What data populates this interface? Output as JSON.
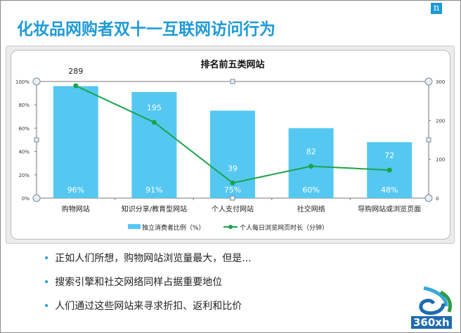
{
  "slide": {
    "title": "化妆品网购者双十一互联网访问行为",
    "brand_mark": "n",
    "bullets": [
      "正如人们所想，购物网站浏览量最大，但是...",
      "搜索引擎和社交网络同样占据重要地位",
      "人们通过这些网站来寻求折扣、返利和比价"
    ],
    "logo_text": "360xh"
  },
  "chart_data": {
    "type": "bar+line",
    "title": "排名前五类网站",
    "categories": [
      "购物网站",
      "知识分享/教育型网站",
      "个人支付网站",
      "社交网络",
      "导购网站或浏览页面"
    ],
    "series": [
      {
        "name": "独立消费者比例（%）",
        "type": "bar",
        "axis": "left",
        "values": [
          96,
          91,
          75,
          60,
          48
        ],
        "labels": [
          "96%",
          "91%",
          "75%",
          "60%",
          "48%"
        ],
        "color": "#55c8f2"
      },
      {
        "name": "个人每日浏览网页时长（分钟）",
        "type": "line",
        "axis": "right",
        "values": [
          289,
          195,
          39,
          82,
          72
        ],
        "labels": [
          "289",
          "195",
          "39",
          "82",
          "72"
        ],
        "color": "#1aa34a"
      }
    ],
    "left_axis": {
      "ylim": [
        0,
        100
      ],
      "ticks": [
        "0%",
        "20%",
        "40%",
        "60%",
        "80%",
        "100%"
      ]
    },
    "right_axis": {
      "ylim": [
        0,
        300
      ],
      "ticks": [
        "0",
        "100",
        "200",
        "300"
      ]
    },
    "grid": false,
    "legend": "bottom"
  }
}
